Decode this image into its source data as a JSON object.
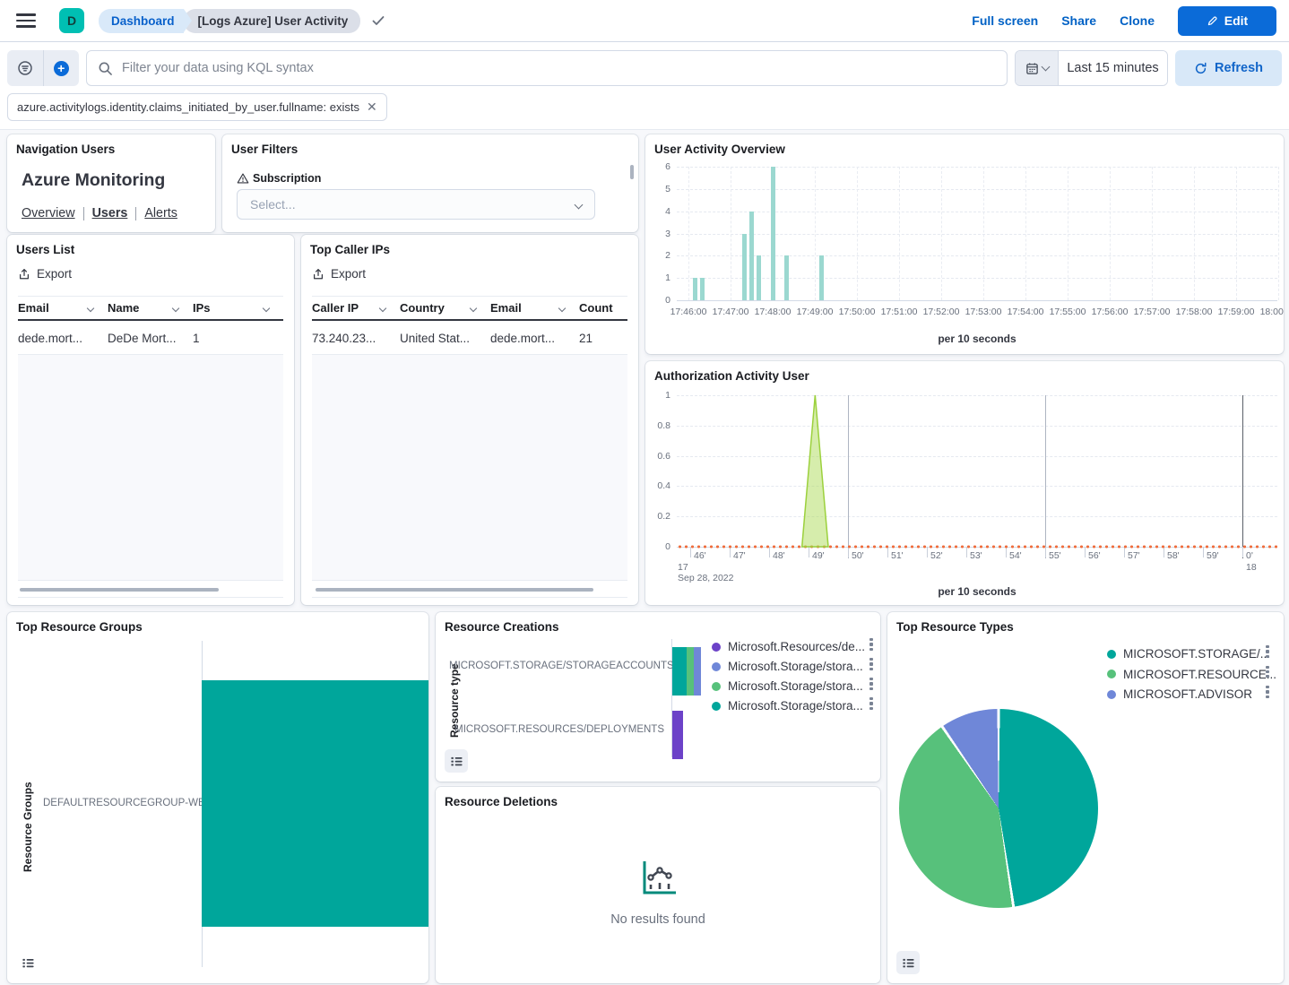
{
  "header": {
    "avatar_initial": "D",
    "breadcrumbs": [
      {
        "label": "Dashboard"
      },
      {
        "label": "[Logs Azure] User Activity"
      }
    ],
    "actions": [
      "Full screen",
      "Share",
      "Clone"
    ],
    "edit_button": "Edit"
  },
  "query_bar": {
    "placeholder": "Filter your data using KQL syntax",
    "time_range": "Last 15 minutes",
    "refresh_label": "Refresh",
    "filter_pill": "azure.activitylogs.identity.claims_initiated_by_user.fullname: exists"
  },
  "panels": {
    "navigation": {
      "title": "Navigation Users",
      "heading": "Azure Monitoring",
      "links": [
        "Overview",
        "Users",
        "Alerts"
      ]
    },
    "user_filters": {
      "title": "User Filters",
      "field_label": "Subscription",
      "select_placeholder": "Select..."
    },
    "activity_overview": {
      "title": "User Activity Overview",
      "xlabel": "per 10 seconds"
    },
    "users_list": {
      "title": "Users List",
      "export_label": "Export",
      "columns": [
        "Email",
        "Name",
        "IPs"
      ],
      "rows": [
        [
          "dede.mort...",
          "DeDe Mort...",
          "1"
        ]
      ]
    },
    "top_caller_ips": {
      "title": "Top Caller IPs",
      "export_label": "Export",
      "columns": [
        "Caller IP",
        "Country",
        "Email",
        "Count"
      ],
      "rows": [
        [
          "73.240.23...",
          "United Stat...",
          "dede.mort...",
          "21"
        ]
      ]
    },
    "auth_activity": {
      "title": "Authorization Activity User",
      "xlabel": "per 10 seconds"
    },
    "top_resource_groups": {
      "title": "Top Resource Groups",
      "ylabel": "Resource Groups"
    },
    "resource_creations": {
      "title": "Resource Creations",
      "ylabel": "Resource type"
    },
    "resource_deletions": {
      "title": "Resource Deletions",
      "empty_message": "No results found"
    },
    "top_resource_types": {
      "title": "Top Resource Types"
    }
  },
  "chart_data": [
    {
      "id": "user_activity_overview",
      "type": "bar",
      "title": "User Activity Overview",
      "xlabel": "per 10 seconds",
      "ylim": [
        0,
        6
      ],
      "yticks": [
        0,
        1,
        2,
        3,
        4,
        5,
        6
      ],
      "xticks": [
        "17:46:00",
        "17:47:00",
        "17:48:00",
        "17:49:00",
        "17:50:00",
        "17:51:00",
        "17:52:00",
        "17:53:00",
        "17:54:00",
        "17:55:00",
        "17:56:00",
        "17:57:00",
        "17:58:00",
        "17:59:00",
        "18:00:00"
      ],
      "points": [
        {
          "t": "17:46:10",
          "v": 1
        },
        {
          "t": "17:46:20",
          "v": 1
        },
        {
          "t": "17:47:20",
          "v": 3
        },
        {
          "t": "17:47:30",
          "v": 4
        },
        {
          "t": "17:47:40",
          "v": 2
        },
        {
          "t": "17:48:00",
          "v": 6
        },
        {
          "t": "17:48:20",
          "v": 2
        },
        {
          "t": "17:49:10",
          "v": 2
        }
      ],
      "bar_color": "#9BD8D0"
    },
    {
      "id": "authorization_activity_user",
      "type": "area",
      "title": "Authorization Activity User",
      "xlabel": "per 10 seconds",
      "ylim": [
        0,
        1
      ],
      "yticks": [
        0,
        0.2,
        0.4,
        0.6,
        0.8,
        1
      ],
      "xticks": [
        "46'",
        "47'",
        "48'",
        "49'",
        "50'",
        "51'",
        "52'",
        "53'",
        "54'",
        "55'",
        "56'",
        "57'",
        "58'",
        "59'",
        "0'"
      ],
      "x_context": {
        "left_hour": "17",
        "left_date": "Sep 28, 2022",
        "right_hour": "18"
      },
      "major_grid_ticks": [
        4,
        9
      ],
      "end_grid_tick": 14,
      "spike": {
        "time": "17:49:10",
        "value": 1,
        "base_start": "17:48:50",
        "base_end": "17:49:30",
        "fill": "rgba(174,220,89,0.5)",
        "stroke": "#9CD13D"
      },
      "baseline": {
        "value": 0,
        "color": "#EF6E3E"
      }
    },
    {
      "id": "top_resource_groups",
      "type": "bar_horizontal",
      "ylabel": "Resource Groups",
      "categories": [
        "DEFAULTRESOURCEGROUP-WEU"
      ],
      "values": [
        1
      ],
      "color": "#00A69B",
      "note": "single bar, clipped at panel right edge"
    },
    {
      "id": "resource_creations",
      "type": "bar_horizontal_stacked",
      "ylabel": "Resource type",
      "categories": [
        "MICROSOFT.STORAGE/STORAGEACCOUNTS",
        "MICROSOFT.RESOURCES/DEPLOYMENTS"
      ],
      "series": [
        {
          "name": "Microsoft.Resources/de...",
          "color": "#6C42C8",
          "values": [
            0,
            1.5
          ]
        },
        {
          "name": "Microsoft.Storage/stora...",
          "color": "#6F87D8",
          "values": [
            1,
            0
          ]
        },
        {
          "name": "Microsoft.Storage/stora...",
          "color": "#57C17B",
          "values": [
            1,
            0
          ]
        },
        {
          "name": "Microsoft.Storage/stora...",
          "color": "#00A69B",
          "values": [
            2,
            0
          ]
        }
      ]
    },
    {
      "id": "top_resource_types",
      "type": "pie",
      "slices": [
        {
          "label": "MICROSOFT.STORAGE/...",
          "pct": 47.6,
          "color": "#00A69B"
        },
        {
          "label": "MICROSOFT.RESOURCE...",
          "pct": 42.8,
          "color": "#57C17B"
        },
        {
          "label": "MICROSOFT.ADVISOR",
          "pct": 9.6,
          "color": "#6F87D8"
        }
      ]
    }
  ]
}
